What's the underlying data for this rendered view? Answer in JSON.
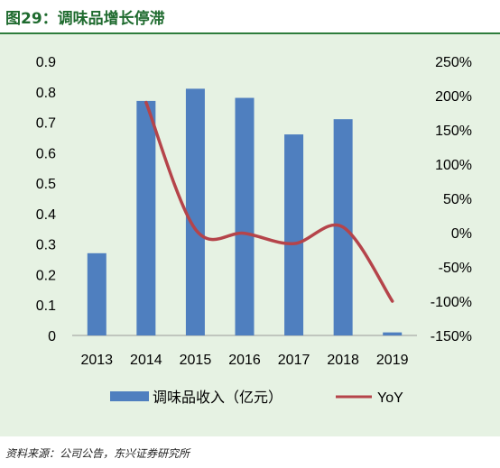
{
  "figure_title": "图29：调味品增长停滞",
  "source_note": "资料来源：公司公告，东兴证券研究所",
  "colors": {
    "bar": "#4f7fbf",
    "line": "#b5444a",
    "background": "#e6f2e3",
    "title": "#1f6b2f"
  },
  "chart_data": {
    "type": "bar",
    "categories": [
      "2013",
      "2014",
      "2015",
      "2016",
      "2017",
      "2018",
      "2019"
    ],
    "series": [
      {
        "name": "调味品收入（亿元）",
        "type": "bar",
        "axis": "left",
        "values": [
          0.27,
          0.77,
          0.81,
          0.78,
          0.66,
          0.71,
          0.01
        ]
      },
      {
        "name": "YoY",
        "type": "line",
        "axis": "right",
        "values": [
          null,
          1.9,
          0.05,
          -0.01,
          -0.16,
          0.08,
          -1.0
        ]
      }
    ],
    "y_left": {
      "lim": [
        0,
        0.9
      ],
      "ticks": [
        "0",
        "0.1",
        "0.2",
        "0.3",
        "0.4",
        "0.5",
        "0.6",
        "0.7",
        "0.8",
        "0.9"
      ]
    },
    "y_right": {
      "lim": [
        -1.5,
        2.5
      ],
      "ticks": [
        "-150%",
        "-100%",
        "-50%",
        "0%",
        "50%",
        "100%",
        "150%",
        "200%",
        "250%"
      ]
    },
    "grid": false,
    "legend": "bottom"
  }
}
